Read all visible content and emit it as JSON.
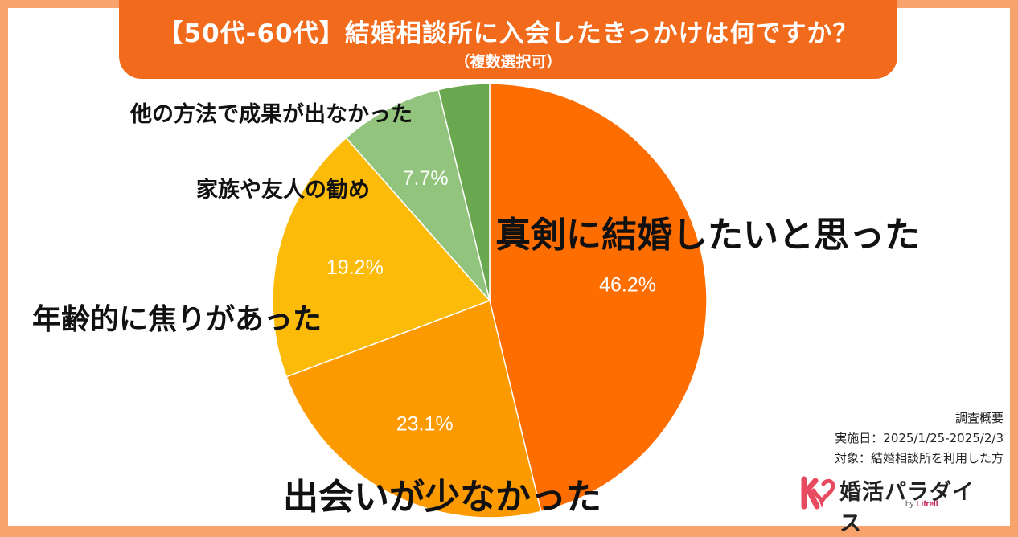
{
  "header": {
    "title": "【50代-60代】結婚相談所に入会したきっかけは何ですか？",
    "subtitle": "（複数選択可）"
  },
  "chart_data": {
    "type": "pie",
    "categories": [
      "真剣に結婚したいと思った",
      "出会いが少なかった",
      "年齢的に焦りがあった",
      "家族や友人の勧め",
      "他の方法で成果が出なかった"
    ],
    "values": [
      46.2,
      23.1,
      19.2,
      7.7,
      3.8
    ],
    "data_labels": [
      "46.2%",
      "23.1%",
      "19.2%",
      "7.7%",
      ""
    ],
    "colors": [
      "#fe6d00",
      "#fd9a00",
      "#fbbb08",
      "#92c47d",
      "#6aa84f"
    ],
    "start_angle": "12 o'clock",
    "direction": "clockwise"
  },
  "survey": {
    "heading": "調査概要",
    "period": "実施日：2025/1/25-2025/2/3",
    "target": "対象：結婚相談所を利用した方"
  },
  "logo": {
    "name": "婚活パラダイス",
    "by": "by",
    "brand": "Lifrell",
    "mark_color": "#e84a5f"
  }
}
